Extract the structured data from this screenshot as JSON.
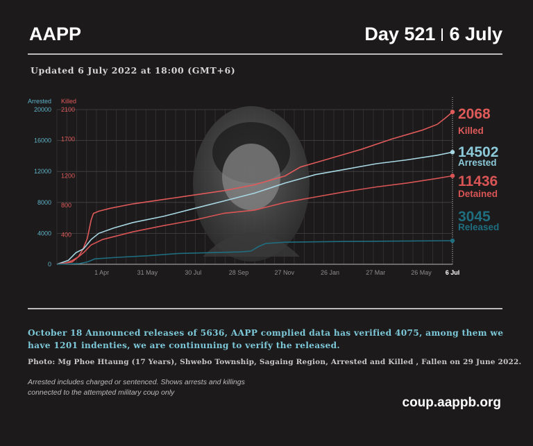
{
  "header": {
    "brand": "AAPP",
    "day": "Day 521",
    "date": "6 July"
  },
  "updated": "Updated 6 July 2022 at 18:00 (GMT+6)",
  "chart_data": {
    "type": "line",
    "left_axis": {
      "label": "Arrested",
      "ticks": [
        0,
        4000,
        8000,
        12000,
        16000,
        20000
      ],
      "ylim": [
        0,
        20000
      ],
      "color": "#5fb3c8"
    },
    "right_axis": {
      "label": "Killed",
      "ticks": [
        0,
        400,
        800,
        1200,
        1700,
        2100
      ],
      "ylim": [
        0,
        2100
      ],
      "color": "#e05a5a"
    },
    "x_ticks": [
      {
        "label": "1 Apr",
        "x": 59
      },
      {
        "label": "31 May",
        "x": 119
      },
      {
        "label": "30 Jul",
        "x": 179
      },
      {
        "label": "28 Sep",
        "x": 239
      },
      {
        "label": "27 Nov",
        "x": 299
      },
      {
        "label": "26 Jan",
        "x": 359
      },
      {
        "label": "27 Mar",
        "x": 419
      },
      {
        "label": "26 May",
        "x": 479
      },
      {
        "label": "6 Jul",
        "x": 520
      }
    ],
    "xlim": [
      0,
      520
    ],
    "series": [
      {
        "name": "Killed",
        "value_label": "2068",
        "axis": "right",
        "color": "#e05a5a",
        "points": [
          [
            0,
            0
          ],
          [
            10,
            10
          ],
          [
            20,
            50
          ],
          [
            28,
            100
          ],
          [
            34,
            200
          ],
          [
            40,
            350
          ],
          [
            45,
            600
          ],
          [
            48,
            690
          ],
          [
            55,
            720
          ],
          [
            70,
            760
          ],
          [
            100,
            820
          ],
          [
            140,
            880
          ],
          [
            180,
            940
          ],
          [
            220,
            1000
          ],
          [
            260,
            1080
          ],
          [
            300,
            1200
          ],
          [
            320,
            1320
          ],
          [
            340,
            1380
          ],
          [
            360,
            1440
          ],
          [
            400,
            1560
          ],
          [
            440,
            1700
          ],
          [
            480,
            1820
          ],
          [
            500,
            1900
          ],
          [
            510,
            1980
          ],
          [
            520,
            2068
          ]
        ]
      },
      {
        "name": "Arrested",
        "value_label": "14502",
        "axis": "left",
        "color": "#a8d8e4",
        "points": [
          [
            0,
            0
          ],
          [
            15,
            500
          ],
          [
            25,
            1500
          ],
          [
            35,
            2000
          ],
          [
            45,
            3200
          ],
          [
            55,
            4000
          ],
          [
            75,
            4700
          ],
          [
            100,
            5400
          ],
          [
            140,
            6200
          ],
          [
            180,
            7200
          ],
          [
            220,
            8200
          ],
          [
            260,
            9200
          ],
          [
            300,
            10500
          ],
          [
            340,
            11600
          ],
          [
            380,
            12300
          ],
          [
            420,
            13000
          ],
          [
            460,
            13500
          ],
          [
            500,
            14100
          ],
          [
            520,
            14502
          ]
        ]
      },
      {
        "name": "Detained",
        "value_label": "11436",
        "axis": "left",
        "color": "#d95555",
        "points": [
          [
            0,
            0
          ],
          [
            20,
            300
          ],
          [
            35,
            1500
          ],
          [
            45,
            2500
          ],
          [
            60,
            3200
          ],
          [
            100,
            4200
          ],
          [
            140,
            5000
          ],
          [
            180,
            5700
          ],
          [
            220,
            6600
          ],
          [
            260,
            7000
          ],
          [
            300,
            8000
          ],
          [
            340,
            8700
          ],
          [
            380,
            9400
          ],
          [
            420,
            10000
          ],
          [
            460,
            10500
          ],
          [
            500,
            11100
          ],
          [
            520,
            11436
          ]
        ]
      },
      {
        "name": "Released",
        "value_label": "3045",
        "axis": "left",
        "color": "#1f6e80",
        "points": [
          [
            0,
            0
          ],
          [
            30,
            100
          ],
          [
            40,
            300
          ],
          [
            50,
            700
          ],
          [
            80,
            900
          ],
          [
            120,
            1100
          ],
          [
            160,
            1400
          ],
          [
            200,
            1500
          ],
          [
            240,
            1600
          ],
          [
            255,
            1700
          ],
          [
            265,
            2300
          ],
          [
            275,
            2700
          ],
          [
            300,
            2850
          ],
          [
            380,
            2950
          ],
          [
            450,
            3000
          ],
          [
            520,
            3045
          ]
        ]
      }
    ]
  },
  "note": "October 18 Announced releases of 5636, AAPP complied data has verified 4075, among them we have 1201 indenties, we are continuning to verify the released.",
  "photo_caption": "Photo:  Mg Phoe Htaung (17 Years), Shwebo Township, Sagaing Region, Arrested and Killed , Fallen on 29 June 2022.",
  "footnotes": [
    "Arrested includes charged or sentenced. Shows arrests and killings",
    "connected to the attempted military coup only"
  ],
  "site": "coup.aappb.org"
}
